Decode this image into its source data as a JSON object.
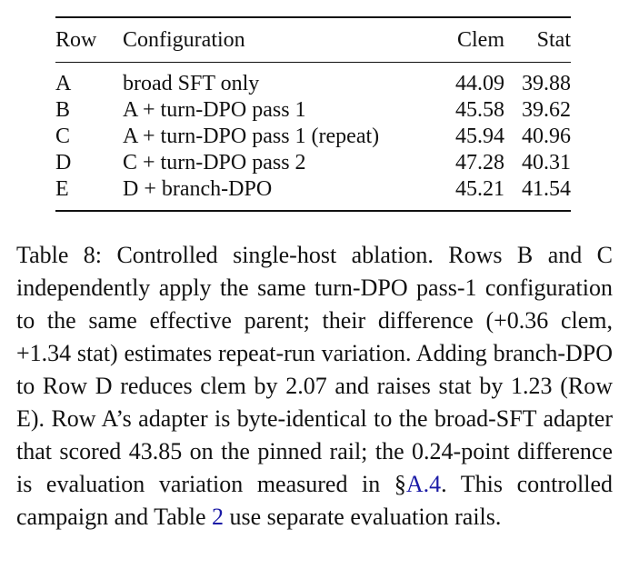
{
  "table": {
    "headers": [
      "Row",
      "Configuration",
      "Clem",
      "Stat"
    ],
    "rows": [
      {
        "row": "A",
        "configuration": "broad SFT only",
        "clem": "44.09",
        "stat": "39.88"
      },
      {
        "row": "B",
        "configuration": "A + turn-DPO pass 1",
        "clem": "45.58",
        "stat": "39.62"
      },
      {
        "row": "C",
        "configuration": "A + turn-DPO pass 1 (repeat)",
        "clem": "45.94",
        "stat": "40.96"
      },
      {
        "row": "D",
        "configuration": "C + turn-DPO pass 2",
        "clem": "47.28",
        "stat": "40.31"
      },
      {
        "row": "E",
        "configuration": "D + branch-DPO",
        "clem": "45.21",
        "stat": "41.54"
      }
    ]
  },
  "caption": {
    "label": "Table 8:",
    "text_1": "Controlled single-host ablation. Rows B and C independently apply the same turn-DPO pass-1 configuration to the same effective parent; their difference (+0.36 clem, +1.34 stat) estimates repeat-run variation. Adding branch-DPO to Row D reduces clem by 2.07 and raises stat by 1.23 (Row E). Row A’s adapter is byte-identical to the broad-SFT adapter that scored 43.85 on the pinned rail; the 0.24-point difference is evaluation variation measured in §",
    "link_section": "A.4",
    "text_2": ". This controlled campaign and Table ",
    "link_table": "2",
    "text_3": " use separate evaluation rails."
  }
}
